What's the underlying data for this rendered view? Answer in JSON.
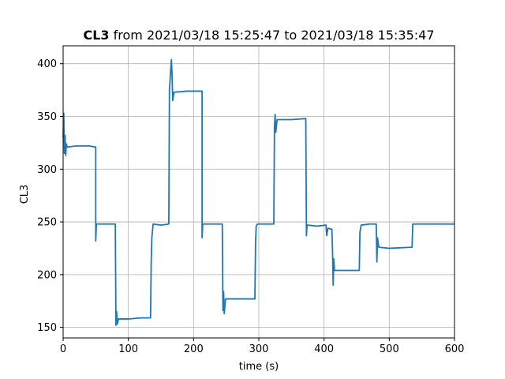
{
  "chart_data": {
    "type": "line",
    "title_bold": "CL3",
    "title_rest": " from 2021/03/18 15:25:47 to 2021/03/18 15:35:47",
    "xlabel": "time (s)",
    "ylabel": "CL3",
    "xlim": [
      0,
      600
    ],
    "ylim": [
      140,
      417
    ],
    "xticks": [
      0,
      100,
      200,
      300,
      400,
      500,
      600
    ],
    "yticks": [
      150,
      200,
      250,
      300,
      350,
      400
    ],
    "grid": true,
    "colors": {
      "line": "#1f77b4",
      "grid": "#b0b0b0",
      "axis": "#000000"
    },
    "series": [
      {
        "values": [
          [
            0,
            330
          ],
          [
            1,
            353
          ],
          [
            2,
            315
          ],
          [
            3,
            332
          ],
          [
            4,
            313
          ],
          [
            5,
            324
          ],
          [
            6,
            321
          ],
          [
            20,
            322
          ],
          [
            40,
            322
          ],
          [
            50,
            321
          ],
          [
            50,
            232
          ],
          [
            51,
            248
          ],
          [
            60,
            248
          ],
          [
            80,
            248
          ],
          [
            81,
            152
          ],
          [
            82,
            165
          ],
          [
            83,
            153
          ],
          [
            85,
            158
          ],
          [
            100,
            158
          ],
          [
            120,
            159
          ],
          [
            134,
            159
          ],
          [
            135,
            210
          ],
          [
            136,
            235
          ],
          [
            138,
            248
          ],
          [
            150,
            247
          ],
          [
            162,
            248
          ],
          [
            163,
            375
          ],
          [
            164,
            385
          ],
          [
            165,
            395
          ],
          [
            166,
            404
          ],
          [
            167,
            390
          ],
          [
            168,
            365
          ],
          [
            170,
            373
          ],
          [
            190,
            374
          ],
          [
            213,
            374
          ],
          [
            213,
            235
          ],
          [
            214,
            248
          ],
          [
            230,
            248
          ],
          [
            244,
            248
          ],
          [
            245,
            166
          ],
          [
            246,
            184
          ],
          [
            247,
            163
          ],
          [
            249,
            177
          ],
          [
            270,
            177
          ],
          [
            294,
            177
          ],
          [
            295,
            230
          ],
          [
            296,
            246
          ],
          [
            298,
            248
          ],
          [
            320,
            248
          ],
          [
            323,
            248
          ],
          [
            324,
            340
          ],
          [
            325,
            352
          ],
          [
            326,
            335
          ],
          [
            328,
            347
          ],
          [
            350,
            347
          ],
          [
            372,
            348
          ],
          [
            373,
            237
          ],
          [
            374,
            247
          ],
          [
            390,
            246
          ],
          [
            403,
            247
          ],
          [
            404,
            237
          ],
          [
            406,
            244
          ],
          [
            412,
            243
          ],
          [
            413,
            223
          ],
          [
            414,
            190
          ],
          [
            415,
            215
          ],
          [
            416,
            204
          ],
          [
            430,
            204
          ],
          [
            454,
            204
          ],
          [
            455,
            240
          ],
          [
            457,
            247
          ],
          [
            470,
            248
          ],
          [
            480,
            248
          ],
          [
            481,
            212
          ],
          [
            482,
            235
          ],
          [
            484,
            226
          ],
          [
            500,
            225
          ],
          [
            535,
            226
          ],
          [
            536,
            248
          ],
          [
            560,
            248
          ],
          [
            580,
            248
          ],
          [
            600,
            248
          ]
        ]
      }
    ]
  }
}
